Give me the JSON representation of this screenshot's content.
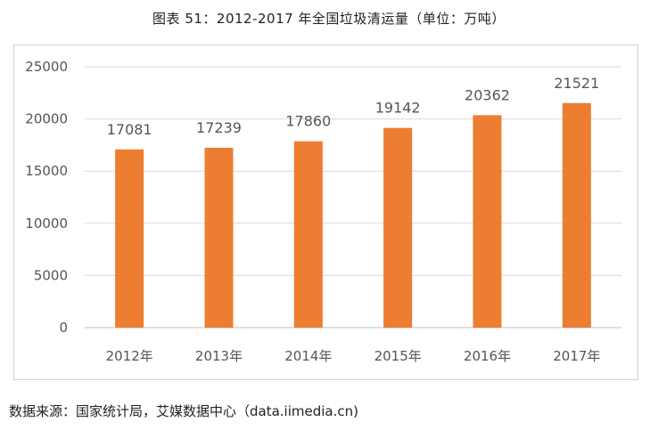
{
  "title": "图表 51：2012-2017 年全国垃圾清运量（单位：万吨）",
  "source": "数据来源：国家统计局，艾媒数据中心（data.iimedia.cn)",
  "chart_data": {
    "type": "bar",
    "categories": [
      "2012年",
      "2013年",
      "2014年",
      "2015年",
      "2016年",
      "2017年"
    ],
    "values": [
      17081,
      17239,
      17860,
      19142,
      20362,
      21521
    ],
    "ylim": [
      0,
      25000
    ],
    "yticks": [
      0,
      5000,
      10000,
      15000,
      20000,
      25000
    ],
    "bar_color": "#ED7D31",
    "grid": true,
    "data_labels": true
  }
}
